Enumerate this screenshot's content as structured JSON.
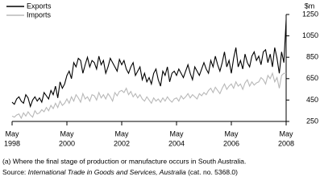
{
  "chart_data": {
    "type": "line",
    "y_label": "$m",
    "x": [
      "1998-05",
      "1998-06",
      "1998-07",
      "1998-08",
      "1998-09",
      "1998-10",
      "1998-11",
      "1998-12",
      "1999-01",
      "1999-02",
      "1999-03",
      "1999-04",
      "1999-05",
      "1999-06",
      "1999-07",
      "1999-08",
      "1999-09",
      "1999-10",
      "1999-11",
      "1999-12",
      "2000-01",
      "2000-02",
      "2000-03",
      "2000-04",
      "2000-05",
      "2000-06",
      "2000-07",
      "2000-08",
      "2000-09",
      "2000-10",
      "2000-11",
      "2000-12",
      "2001-01",
      "2001-02",
      "2001-03",
      "2001-04",
      "2001-05",
      "2001-06",
      "2001-07",
      "2001-08",
      "2001-09",
      "2001-10",
      "2001-11",
      "2001-12",
      "2002-01",
      "2002-02",
      "2002-03",
      "2002-04",
      "2002-05",
      "2002-06",
      "2002-07",
      "2002-08",
      "2002-09",
      "2002-10",
      "2002-11",
      "2002-12",
      "2003-01",
      "2003-02",
      "2003-03",
      "2003-04",
      "2003-05",
      "2003-06",
      "2003-07",
      "2003-08",
      "2003-09",
      "2003-10",
      "2003-11",
      "2003-12",
      "2004-01",
      "2004-02",
      "2004-03",
      "2004-04",
      "2004-05",
      "2004-06",
      "2004-07",
      "2004-08",
      "2004-09",
      "2004-10",
      "2004-11",
      "2004-12",
      "2005-01",
      "2005-02",
      "2005-03",
      "2005-04",
      "2005-05",
      "2005-06",
      "2005-07",
      "2005-08",
      "2005-09",
      "2005-10",
      "2005-11",
      "2005-12",
      "2006-01",
      "2006-02",
      "2006-03",
      "2006-04",
      "2006-05",
      "2006-06",
      "2006-07",
      "2006-08",
      "2006-09",
      "2006-10",
      "2006-11",
      "2006-12",
      "2007-01",
      "2007-02",
      "2007-03",
      "2007-04",
      "2007-05",
      "2007-06",
      "2007-07",
      "2007-08",
      "2007-09",
      "2007-10",
      "2007-11",
      "2007-12",
      "2008-01",
      "2008-02",
      "2008-03",
      "2008-04",
      "2008-05"
    ],
    "series": [
      {
        "name": "Exports",
        "color": "#000000",
        "values": [
          430,
          410,
          460,
          480,
          440,
          420,
          500,
          470,
          390,
          450,
          480,
          440,
          470,
          430,
          520,
          490,
          460,
          540,
          500,
          580,
          470,
          620,
          560,
          600,
          680,
          720,
          650,
          800,
          760,
          840,
          820,
          700,
          780,
          850,
          760,
          820,
          800,
          740,
          860,
          780,
          820,
          700,
          760,
          840,
          800,
          760,
          720,
          830,
          780,
          820,
          740,
          700,
          760,
          800,
          680,
          720,
          760,
          640,
          700,
          620,
          660,
          600,
          700,
          740,
          640,
          580,
          720,
          680,
          760,
          620,
          700,
          720,
          680,
          740,
          700,
          660,
          720,
          780,
          700,
          640,
          760,
          720,
          680,
          740,
          800,
          740,
          700,
          820,
          760,
          860,
          780,
          720,
          800,
          900,
          760,
          820,
          700,
          840,
          940,
          760,
          820,
          740,
          880,
          800,
          760,
          860,
          900,
          820,
          860,
          780,
          900,
          920,
          800,
          880,
          760,
          940,
          840,
          700,
          900,
          800,
          1200
        ]
      },
      {
        "name": "Imports",
        "color": "#b8b8b8",
        "values": [
          300,
          290,
          310,
          320,
          280,
          330,
          300,
          340,
          310,
          290,
          350,
          320,
          330,
          360,
          340,
          380,
          350,
          400,
          370,
          420,
          380,
          440,
          400,
          420,
          460,
          420,
          480,
          440,
          500,
          470,
          430,
          510,
          460,
          480,
          440,
          500,
          490,
          450,
          520,
          470,
          500,
          460,
          510,
          480,
          440,
          520,
          490,
          530,
          540,
          520,
          560,
          500,
          530,
          480,
          510,
          470,
          500,
          460,
          440,
          480,
          450,
          420,
          470,
          440,
          460,
          430,
          470,
          440,
          480,
          450,
          430,
          460,
          470,
          440,
          490,
          460,
          480,
          510,
          470,
          500,
          480,
          460,
          510,
          490,
          520,
          500,
          540,
          560,
          520,
          570,
          540,
          510,
          560,
          600,
          550,
          580,
          600,
          560,
          620,
          580,
          600,
          550,
          610,
          640,
          580,
          620,
          590,
          610,
          620,
          660,
          640,
          600,
          680,
          650,
          700,
          620,
          660,
          560,
          680,
          700,
          700
        ]
      }
    ],
    "ylim": [
      250,
      1250
    ],
    "yticks": [
      250,
      450,
      650,
      850,
      1050,
      1250
    ],
    "xticks": [
      {
        "value": "1998-05",
        "label": [
          "May",
          "1998"
        ]
      },
      {
        "value": "2000-05",
        "label": [
          "May",
          "2000"
        ]
      },
      {
        "value": "2002-05",
        "label": [
          "May",
          "2002"
        ]
      },
      {
        "value": "2004-05",
        "label": [
          "May",
          "2004"
        ]
      },
      {
        "value": "2006-05",
        "label": [
          "May",
          "2006"
        ]
      },
      {
        "value": "2008-05",
        "label": [
          "May",
          "2008"
        ]
      }
    ],
    "legend": "top-left",
    "grid": false
  },
  "notes": {
    "footnote": "(a) Where the final stage of production or manufacture occurs in South Australia.",
    "source_prefix": "Source: ",
    "source_title": "International Trade in Goods and Services, Australia",
    "source_suffix": " (cat. no. 5368.0)"
  }
}
